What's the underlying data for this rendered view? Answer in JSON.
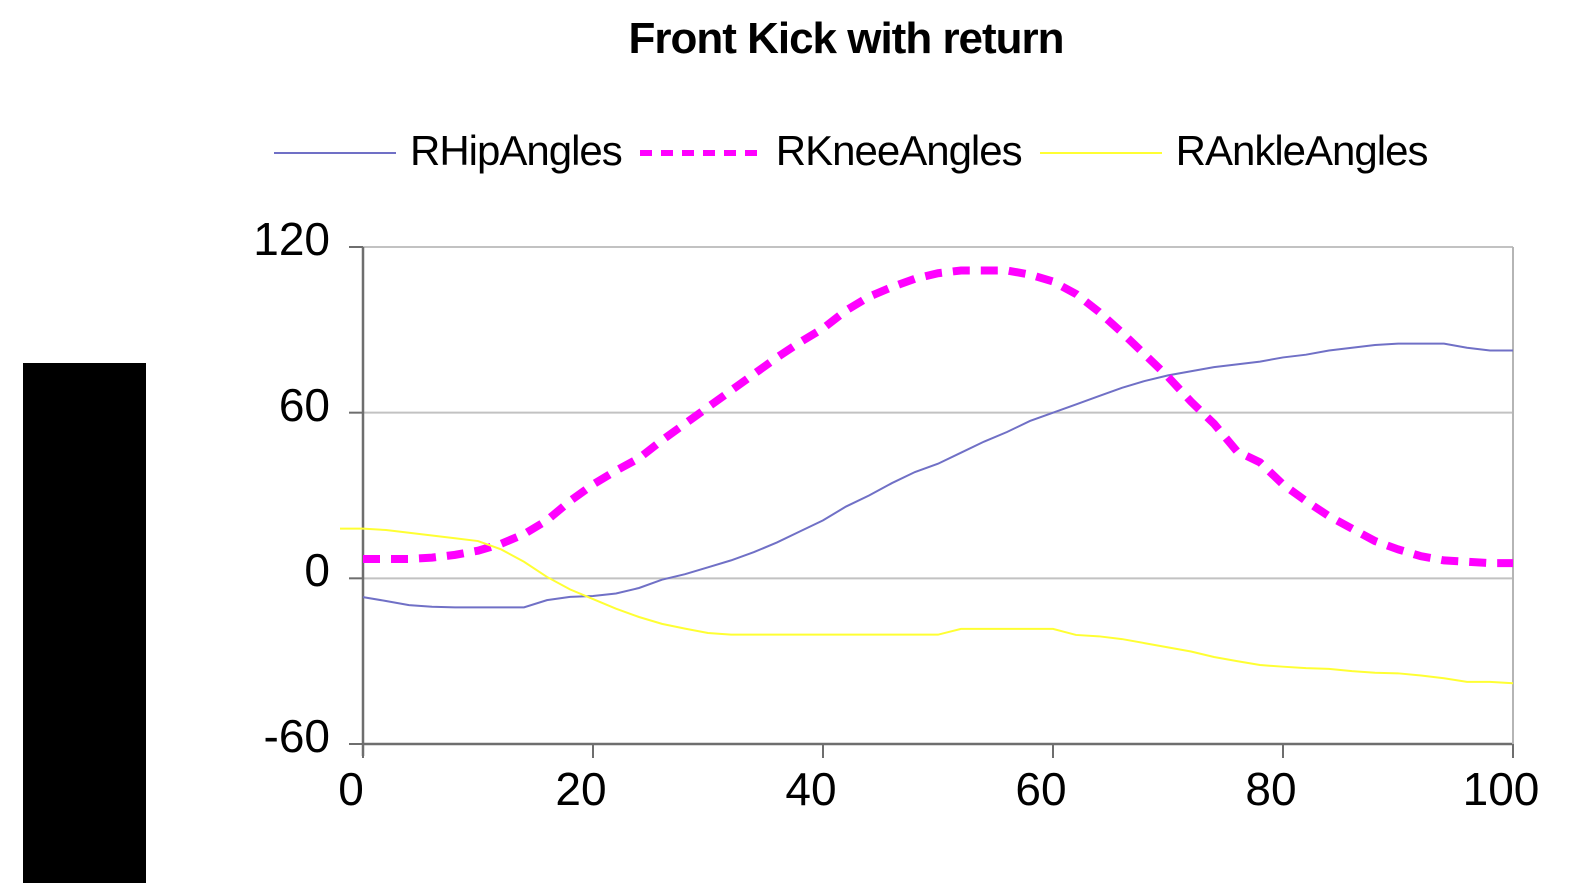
{
  "title": "Front Kick with return",
  "axes": {
    "x_tick_labels": [
      "0",
      "20",
      "40",
      "60",
      "80",
      "100"
    ],
    "y_tick_labels": [
      "120",
      "60",
      "0",
      "-60"
    ]
  },
  "chart_data": {
    "type": "line",
    "title": "Front Kick with return",
    "xlabel": "",
    "ylabel": "",
    "xlim": [
      0,
      100
    ],
    "ylim": [
      -60,
      120
    ],
    "x_ticks": [
      0,
      20,
      40,
      60,
      80,
      100
    ],
    "y_ticks": [
      -60,
      0,
      60,
      120
    ],
    "grid": "horizontal gridlines at every 60 units",
    "legend_position": "top",
    "plot_border": true,
    "x": [
      0,
      2,
      4,
      6,
      8,
      10,
      12,
      14,
      16,
      18,
      20,
      22,
      24,
      26,
      28,
      30,
      32,
      34,
      36,
      38,
      40,
      42,
      44,
      46,
      48,
      50,
      52,
      54,
      56,
      58,
      60,
      62,
      64,
      66,
      68,
      70,
      72,
      74,
      76,
      78,
      80,
      82,
      84,
      86,
      88,
      90,
      92,
      94,
      96,
      98,
      100
    ],
    "series": [
      {
        "name": "RHipAngles",
        "color": "#7070C6",
        "line_style": "solid",
        "line_width": 2,
        "values": [
          -6.8,
          -8.2,
          -9.7,
          -10.3,
          -10.5,
          -10.5,
          -10.5,
          -10.5,
          -7.9,
          -6.7,
          -6.4,
          -5.5,
          -3.5,
          -0.5,
          1.5,
          4,
          6.5,
          9.5,
          13,
          17,
          21,
          26,
          30,
          34.5,
          38.5,
          41.5,
          45.5,
          49.5,
          53,
          57,
          60,
          63,
          66,
          69,
          71.5,
          73.5,
          75,
          76.5,
          77.5,
          78.5,
          80,
          81,
          82.5,
          83.5,
          84.5,
          85,
          85,
          85,
          83.5,
          82.5,
          82.5
        ]
      },
      {
        "name": "RKneeAngles",
        "color": "#FF00FF",
        "line_style": "dashed",
        "line_width": 8,
        "values": [
          7,
          7,
          7,
          7.5,
          8.5,
          10,
          12.5,
          16,
          21,
          28,
          34,
          39,
          43.5,
          50,
          56,
          62,
          68,
          74,
          80,
          85.5,
          90.5,
          97,
          102,
          105.5,
          108.5,
          110.5,
          111.5,
          111.5,
          111.5,
          110,
          107.5,
          103,
          96.5,
          89,
          81,
          73,
          64,
          56,
          46,
          42,
          34,
          28,
          22.5,
          18,
          13.5,
          10.5,
          8,
          6.5,
          6,
          5.5,
          5.5
        ]
      },
      {
        "name": "RAnkleAngles",
        "color": "#FFFF33",
        "line_style": "solid",
        "line_width": 2,
        "starts_before_axis": true,
        "values": [
          18,
          17.5,
          16.5,
          15.5,
          14.5,
          13.5,
          10.5,
          6,
          0.5,
          -4,
          -7.5,
          -11,
          -14,
          -16.5,
          -18.2,
          -19.8,
          -20.4,
          -20.4,
          -20.4,
          -20.4,
          -20.4,
          -20.4,
          -20.4,
          -20.4,
          -20.4,
          -20.4,
          -18.3,
          -18.3,
          -18.3,
          -18.3,
          -18.3,
          -20.5,
          -21,
          -22,
          -23.5,
          -25,
          -26.5,
          -28.5,
          -30,
          -31.4,
          -32,
          -32.5,
          -32.8,
          -33.6,
          -34.2,
          -34.4,
          -35.2,
          -36.2,
          -37.5,
          -37.5,
          -38
        ]
      }
    ]
  },
  "colors": {
    "background": "#FFFFFF",
    "gridline": "#C2C2C2",
    "axis": "#6E6E6E",
    "plot_border_right": "#B5B5B5",
    "text": "#000000",
    "redaction_block": "#000000"
  }
}
